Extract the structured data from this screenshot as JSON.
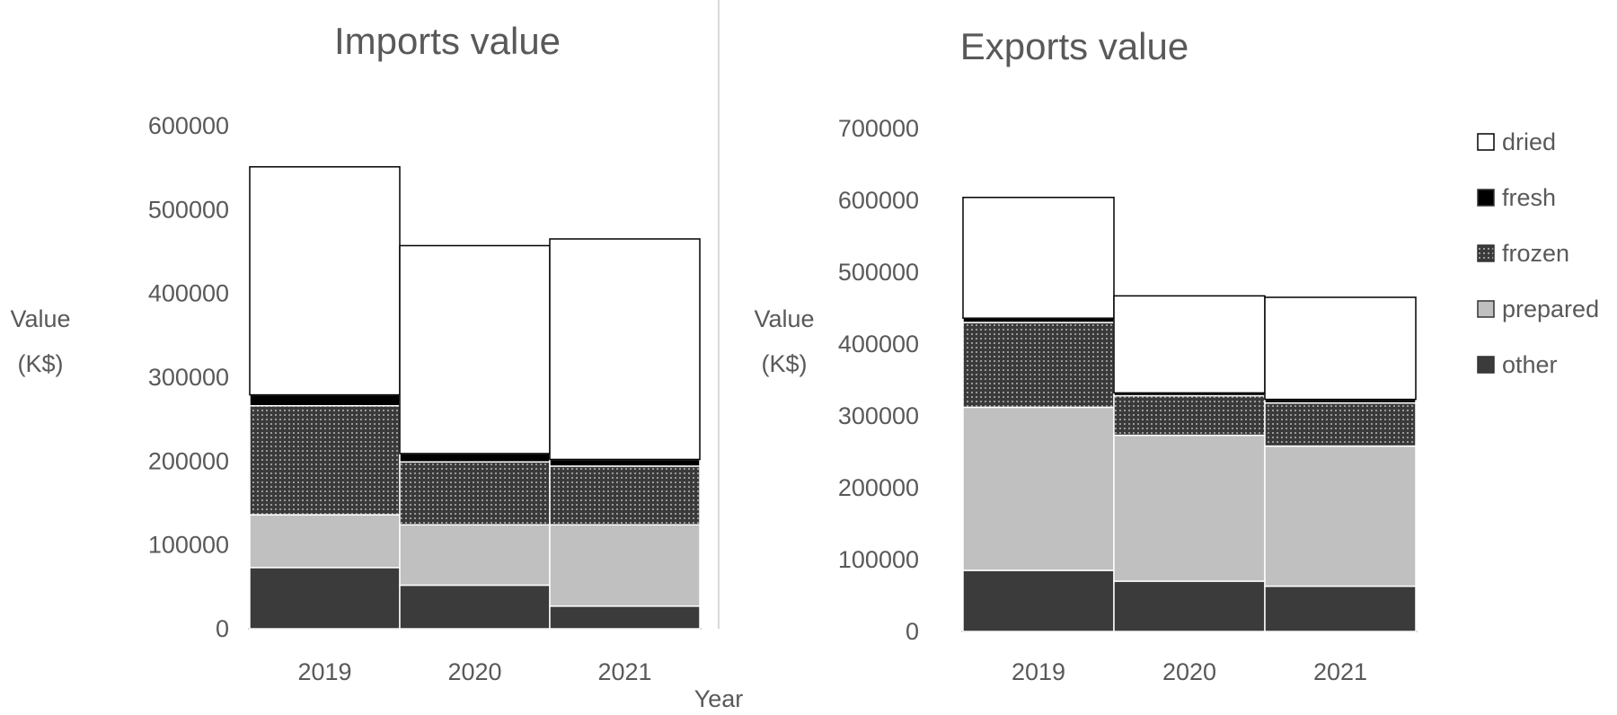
{
  "chart_data": [
    {
      "type": "bar",
      "stacked": true,
      "title": "Imports value",
      "ylabel": "Value (K$)",
      "xlabel": "Year",
      "categories": [
        "2019",
        "2020",
        "2021"
      ],
      "ylim": [
        0,
        600000
      ],
      "yticks": [
        "0",
        "100000",
        "200000",
        "300000",
        "400000",
        "500000",
        "600000"
      ],
      "series": [
        {
          "name": "other",
          "values": [
            73000,
            52000,
            27000
          ]
        },
        {
          "name": "prepared",
          "values": [
            63000,
            72000,
            97000
          ]
        },
        {
          "name": "frozen",
          "values": [
            130000,
            75000,
            70000
          ]
        },
        {
          "name": "fresh",
          "values": [
            13000,
            10000,
            8000
          ]
        },
        {
          "name": "dried",
          "values": [
            272000,
            248000,
            263000
          ]
        }
      ]
    },
    {
      "type": "bar",
      "stacked": true,
      "title": "Exports value",
      "ylabel": "Value (K$)",
      "categories": [
        "2019",
        "2020",
        "2021"
      ],
      "ylim": [
        0,
        700000
      ],
      "yticks": [
        "0",
        "100000",
        "200000",
        "300000",
        "400000",
        "500000",
        "600000",
        "700000"
      ],
      "series": [
        {
          "name": "other",
          "values": [
            85000,
            70000,
            63000
          ]
        },
        {
          "name": "prepared",
          "values": [
            227000,
            203000,
            195000
          ]
        },
        {
          "name": "frozen",
          "values": [
            118000,
            55000,
            60000
          ]
        },
        {
          "name": "fresh",
          "values": [
            6000,
            4000,
            5000
          ]
        },
        {
          "name": "dried",
          "values": [
            168000,
            135000,
            142000
          ]
        }
      ],
      "legend": [
        "dried",
        "fresh",
        "frozen",
        "prepared",
        "other"
      ],
      "legend_position": "right"
    }
  ],
  "labels": {
    "value_line1": "Value",
    "value_line2": "(K$)",
    "year": "Year"
  },
  "colors": {
    "other": "#3b3b3b",
    "prepared": "#c0c0c0",
    "frozen": "#3a3a3a",
    "fresh": "#000000",
    "dried": "#ffffff",
    "text": "#595959",
    "divider": "#d9d9d9"
  }
}
